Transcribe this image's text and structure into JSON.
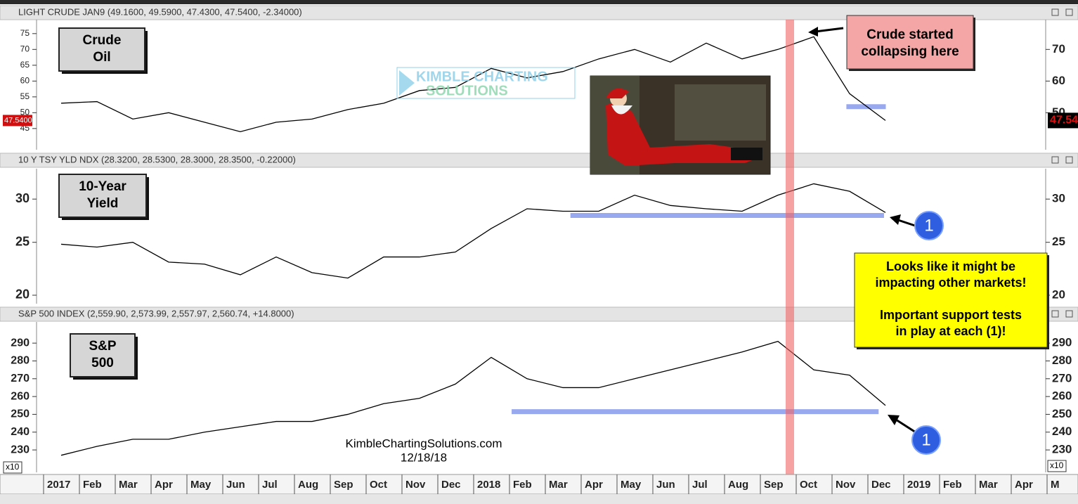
{
  "chart_data": [
    {
      "type": "line",
      "title": "LIGHT CRUDE JAN9 (49.1600, 49.5900, 47.4300, 47.5400, -2.34000)",
      "label": [
        "Crude",
        "Oil"
      ],
      "values": [
        53,
        53.5,
        48,
        50,
        47,
        44,
        47,
        48,
        51,
        53,
        57,
        58,
        64,
        61,
        63,
        67,
        70,
        66,
        72,
        67,
        70,
        74,
        56,
        47.54,
        null,
        null,
        null,
        null,
        null
      ],
      "ylim": [
        38.3,
        79.4
      ],
      "yticks": [
        45,
        50,
        55,
        60,
        65,
        70,
        75
      ],
      "right_ticks": [
        50,
        60,
        70
      ],
      "last_label": "47.5400",
      "last_label_right": "47.54",
      "support": 51.9,
      "log": false,
      "color": "#000000"
    },
    {
      "type": "line",
      "title": "10 Y TSY YLD NDX (28.3200, 28.5300, 28.3000, 28.3500, -0.22000)",
      "label": [
        "10-Year",
        "Yield"
      ],
      "values": [
        24.8,
        24.5,
        25,
        23,
        22.8,
        21.8,
        23.5,
        22,
        21.5,
        23.5,
        23.5,
        24,
        26.5,
        28.8,
        28.5,
        28.5,
        30.5,
        29.2,
        28.8,
        28.5,
        30.5,
        32,
        31,
        28.35,
        null,
        null,
        null,
        null,
        null
      ],
      "ylim": [
        19.3,
        34.1
      ],
      "yticks": [
        20,
        25,
        30
      ],
      "right_ticks": [
        20,
        25,
        30
      ],
      "support": 28,
      "log": true,
      "color": "#000000"
    },
    {
      "type": "line",
      "title": "S&P 500 INDEX (2,559.90, 2,573.99, 2,557.97, 2,560.74, +14.8000)",
      "label": [
        "S&P",
        "500"
      ],
      "values": [
        227,
        232,
        236,
        236,
        240,
        243,
        246,
        246,
        250,
        256,
        259,
        267,
        282,
        270,
        265,
        265,
        270,
        275,
        280,
        285,
        291,
        275,
        272,
        255,
        null,
        null,
        null,
        null,
        null
      ],
      "ylim": [
        217.4,
        301.9
      ],
      "yticks": [
        230,
        240,
        250,
        260,
        270,
        280,
        290
      ],
      "right_ticks": [
        230,
        240,
        250,
        260,
        270,
        280,
        290
      ],
      "scale_label": "x10",
      "support": 251.5,
      "log": false,
      "color": "#000000"
    }
  ],
  "x_axis": {
    "labels": [
      "2017",
      "Feb",
      "Mar",
      "Apr",
      "May",
      "Jun",
      "Jul",
      "Aug",
      "Sep",
      "Oct",
      "Nov",
      "Dec",
      "2018",
      "Feb",
      "Mar",
      "Apr",
      "May",
      "Jun",
      "Jul",
      "Aug",
      "Sep",
      "Oct",
      "Nov",
      "Dec",
      "2019",
      "Feb",
      "Mar",
      "Apr",
      "M"
    ]
  },
  "annotations": {
    "crude_callout": [
      "Crude started",
      "collapsing here"
    ],
    "yellow_callout": [
      "Looks like it might be",
      "impacting other markets!",
      "",
      "Important support tests",
      "in play at each (1)!"
    ],
    "badges": [
      "1",
      "1"
    ],
    "watermark": [
      "KIMBLE CHARTING",
      "SOLUTIONS"
    ],
    "footer": [
      "KimbleChartingSolutions.com",
      "12/18/18"
    ]
  }
}
